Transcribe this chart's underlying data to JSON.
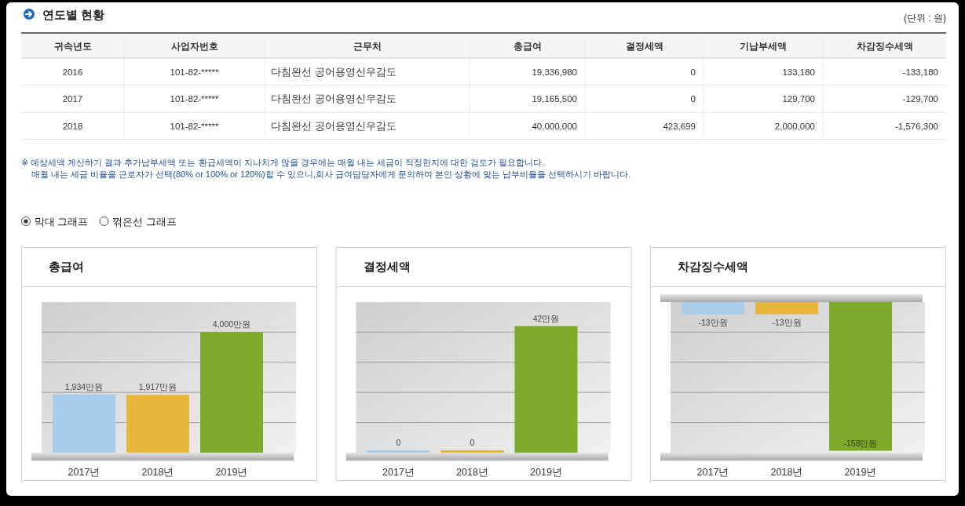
{
  "chart_data": [
    {
      "type": "other",
      "title": "연도별 현황",
      "subtitle": "(단위 : 원)",
      "categories": [
        "귀속년도",
        "사업자번호",
        "근무처",
        "총급여",
        "결정세액",
        "기납부세액",
        "차감징수세액"
      ],
      "cell_labels": [
        [
          "2016",
          "101-82-*****",
          "다침완선 공어용영신우감도",
          "19,336,980",
          "0",
          "133,180",
          "-133,180"
        ],
        [
          "2017",
          "101-82-*****",
          "다침완선 공어용영신우감도",
          "19,165,500",
          "0",
          "129,700",
          "-129,700"
        ],
        [
          "2018",
          "101-82-*****",
          "다침완선 공어용영신우감도",
          "40,000,000",
          "423,699",
          "2,000,000",
          "-1,576,300"
        ]
      ],
      "annotations": [
        "※ 예상세액 계산하기 결과 추가납부세액 또는 환급세액이 지나치게 많을 경우에는 매월 내는 세금이 적정한지에 대한 검토가 필요합니다.",
        "매월 내는 세금 비율을 근로자가 선택(80% or 100% or 120%)할 수 있으니,회사 급여담당자에게 문의하여 본인 상황에 맞는 납부비율을 선택하시기 바랍니다.",
        "막대 그래프",
        "꺾은선 그래프"
      ]
    },
    {
      "type": "bar",
      "title": "총급여",
      "categories": [
        "2017년",
        "2018년",
        "2019년"
      ],
      "values": [
        1934,
        1917,
        4000
      ],
      "value_labels": [
        "1,934만원",
        "1,917만원",
        "4,000만원"
      ],
      "colors": [
        "#a9cce9",
        "#e5b53c",
        "#7fab2c"
      ],
      "ylim": [
        0,
        5000
      ],
      "yticks": [
        {
          "value": 1000,
          "label": null
        },
        {
          "value": 2000,
          "label": null
        },
        {
          "value": 3000,
          "label": null
        },
        {
          "value": 4000,
          "label": null
        }
      ],
      "grid": "y"
    },
    {
      "type": "bar",
      "title": "결정세액",
      "categories": [
        "2017년",
        "2018년",
        "2019년"
      ],
      "values": [
        0,
        0,
        42
      ],
      "value_labels": [
        "0",
        "0",
        "42만원"
      ],
      "colors": [
        "#a9cce9",
        "#e5b53c",
        "#7fab2c"
      ],
      "ylim": [
        0,
        50
      ],
      "yticks": [
        {
          "value": 10,
          "label": null
        },
        {
          "value": 20,
          "label": null
        },
        {
          "value": 30,
          "label": null
        },
        {
          "value": 40,
          "label": null
        }
      ],
      "grid": "y"
    },
    {
      "type": "bar",
      "title": "차감징수세액",
      "categories": [
        "2017년",
        "2018년",
        "2019년"
      ],
      "values": [
        -13,
        -13,
        -158
      ],
      "value_labels": [
        "-13만원",
        "-13만원",
        "-158만원"
      ],
      "colors": [
        "#a9cce9",
        "#e5b53c",
        "#7fab2c"
      ],
      "ylim": [
        -160,
        0
      ],
      "yticks": [
        {
          "value": -128,
          "label": null
        },
        {
          "value": -96,
          "label": null
        },
        {
          "value": -64,
          "label": null
        },
        {
          "value": -32,
          "label": null
        }
      ],
      "grid": "y"
    }
  ]
}
